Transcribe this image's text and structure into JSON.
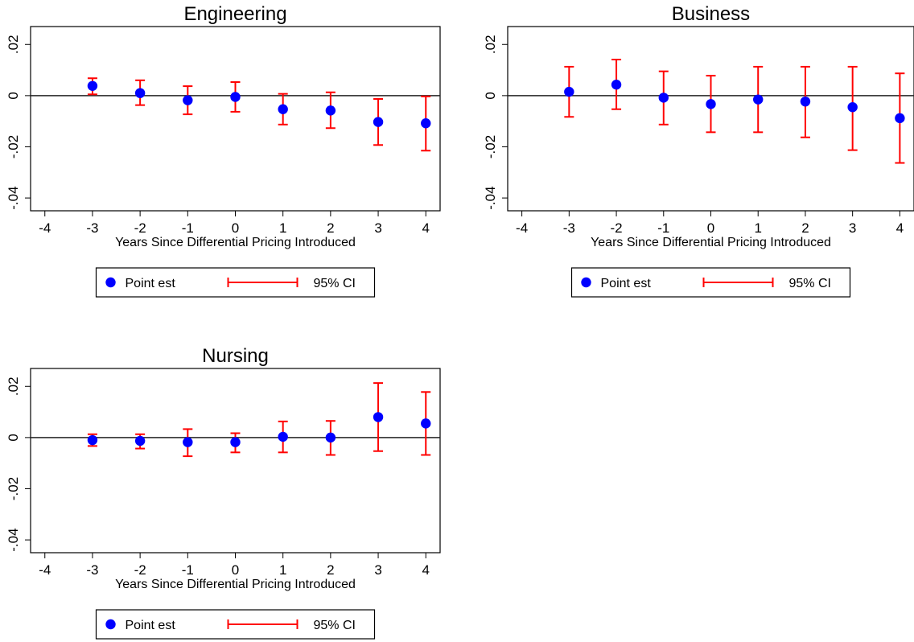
{
  "chart_data": [
    {
      "type": "scatter",
      "title": "Engineering",
      "xlabel": "Years Since Differential Pricing Introduced",
      "ylabel": "",
      "xlim": [
        -4.3,
        4.3
      ],
      "ylim": [
        -0.045,
        0.027
      ],
      "x_ticks": [
        "-4",
        "-3",
        "-2",
        "-1",
        "0",
        "1",
        "2",
        "3",
        "4"
      ],
      "y_ticks": [
        ".02",
        "0",
        "-.02",
        "-.04"
      ],
      "reference_line_y": 0,
      "legend": {
        "position": "bottom",
        "point_label": "Point est",
        "ci_label": "95% CI"
      },
      "series": [
        {
          "name": "Point est",
          "x": [
            -3,
            -2,
            -1,
            0,
            1,
            2,
            3,
            4
          ],
          "y": [
            0.0038,
            0.001,
            -0.0018,
            -0.0005,
            -0.0053,
            -0.0058,
            -0.0103,
            -0.0108
          ],
          "ci_low": [
            0.0005,
            -0.0037,
            -0.0073,
            -0.0063,
            -0.0113,
            -0.0127,
            -0.0193,
            -0.0215
          ],
          "ci_high": [
            0.0068,
            0.006,
            0.0037,
            0.0053,
            0.0007,
            0.0013,
            -0.0013,
            -0.0003
          ]
        }
      ],
      "colors": {
        "point": "#0000ff",
        "ci": "#ff0000"
      }
    },
    {
      "type": "scatter",
      "title": "Business",
      "xlabel": "Years Since Differential Pricing Introduced",
      "ylabel": "",
      "xlim": [
        -4.3,
        4.3
      ],
      "ylim": [
        -0.045,
        0.027
      ],
      "x_ticks": [
        "-4",
        "-3",
        "-2",
        "-1",
        "0",
        "1",
        "2",
        "3",
        "4"
      ],
      "y_ticks": [
        ".02",
        "0",
        "-.02",
        "-.04"
      ],
      "reference_line_y": 0,
      "legend": {
        "position": "bottom",
        "point_label": "Point est",
        "ci_label": "95% CI"
      },
      "series": [
        {
          "name": "Point est",
          "x": [
            -3,
            -2,
            -1,
            0,
            1,
            2,
            3,
            4
          ],
          "y": [
            0.0015,
            0.0043,
            -0.0008,
            -0.0033,
            -0.0015,
            -0.0023,
            -0.0045,
            -0.0088
          ],
          "ci_low": [
            -0.0083,
            -0.0053,
            -0.0113,
            -0.0143,
            -0.0143,
            -0.0163,
            -0.0213,
            -0.0263
          ],
          "ci_high": [
            0.0113,
            0.0141,
            0.0095,
            0.0078,
            0.0113,
            0.0113,
            0.0113,
            0.0087
          ]
        }
      ],
      "colors": {
        "point": "#0000ff",
        "ci": "#ff0000"
      }
    },
    {
      "type": "scatter",
      "title": "Nursing",
      "xlabel": "Years Since Differential Pricing Introduced",
      "ylabel": "",
      "xlim": [
        -4.3,
        4.3
      ],
      "ylim": [
        -0.045,
        0.027
      ],
      "x_ticks": [
        "-4",
        "-3",
        "-2",
        "-1",
        "0",
        "1",
        "2",
        "3",
        "4"
      ],
      "y_ticks": [
        ".02",
        "0",
        "-.02",
        "-.04"
      ],
      "reference_line_y": 0,
      "legend": {
        "position": "bottom",
        "point_label": "Point est",
        "ci_label": "95% CI"
      },
      "series": [
        {
          "name": "Point est",
          "x": [
            -3,
            -2,
            -1,
            0,
            1,
            2,
            3,
            4
          ],
          "y": [
            -0.001,
            -0.0013,
            -0.0018,
            -0.0018,
            0.0003,
            0.0,
            0.008,
            0.0055
          ],
          "ci_low": [
            -0.0033,
            -0.0043,
            -0.0073,
            -0.0058,
            -0.0058,
            -0.0068,
            -0.0053,
            -0.0068
          ],
          "ci_high": [
            0.0013,
            0.0013,
            0.0033,
            0.0017,
            0.0063,
            0.0065,
            0.0213,
            0.0178
          ]
        }
      ],
      "colors": {
        "point": "#0000ff",
        "ci": "#ff0000"
      }
    }
  ]
}
